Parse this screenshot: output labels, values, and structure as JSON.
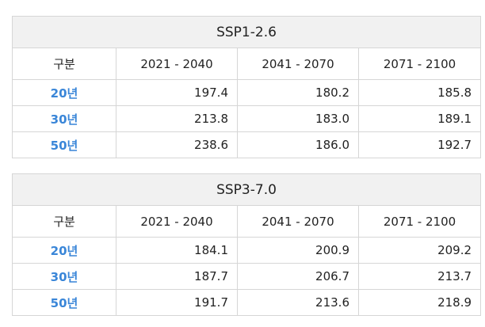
{
  "tables": [
    {
      "title": "SSP1-2.6",
      "headers": [
        "구분",
        "2021 - 2040",
        "2041 - 2070",
        "2071 - 2100"
      ],
      "rows": [
        {
          "label": "20년",
          "values": [
            "197.4",
            "180.2",
            "185.8"
          ]
        },
        {
          "label": "30년",
          "values": [
            "213.8",
            "183.0",
            "189.1"
          ]
        },
        {
          "label": "50년",
          "values": [
            "238.6",
            "186.0",
            "192.7"
          ]
        }
      ]
    },
    {
      "title": "SSP3-7.0",
      "headers": [
        "구분",
        "2021 - 2040",
        "2041 - 2070",
        "2071 - 2100"
      ],
      "rows": [
        {
          "label": "20년",
          "values": [
            "184.1",
            "200.9",
            "209.2"
          ]
        },
        {
          "label": "30년",
          "values": [
            "187.7",
            "206.7",
            "213.7"
          ]
        },
        {
          "label": "50년",
          "values": [
            "191.7",
            "213.6",
            "218.9"
          ]
        }
      ]
    }
  ],
  "colors": {
    "row_label": "#3a86d8",
    "title_bg": "#f1f1f1",
    "border": "#d6d6d6"
  }
}
